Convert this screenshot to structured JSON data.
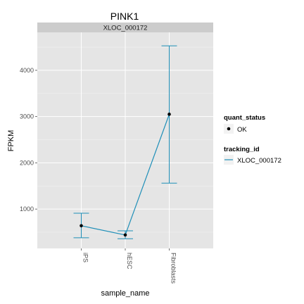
{
  "chart_data": {
    "type": "line",
    "title": "PINK1",
    "facet_label": "XLOC_000172",
    "xlabel": "sample_name",
    "ylabel": "FPKM",
    "categories": [
      "iPS",
      "hESC",
      "Fibroblasts"
    ],
    "series": [
      {
        "name": "XLOC_000172",
        "values": [
          640,
          440,
          3050
        ],
        "error_low": [
          380,
          360,
          1560
        ],
        "error_high": [
          910,
          530,
          4530
        ]
      }
    ],
    "ylim": [
      150,
      4820
    ],
    "yticks": [
      1000,
      2000,
      3000,
      4000
    ],
    "grid": true,
    "legend": {
      "placement": "right",
      "groups": [
        {
          "title": "quant_status",
          "items": [
            {
              "label": "OK",
              "shape": "point"
            }
          ]
        },
        {
          "title": "tracking_id",
          "items": [
            {
              "label": "XLOC_000172",
              "shape": "line"
            }
          ]
        }
      ]
    },
    "colors": {
      "line": "#1f8fb8",
      "point": "#000000",
      "panel_bg": "#e5e5e5",
      "strip_bg": "#cccccc",
      "grid": "#ffffff"
    }
  }
}
